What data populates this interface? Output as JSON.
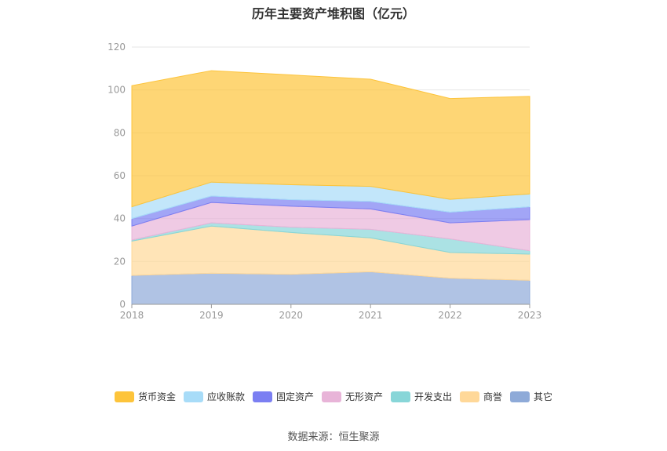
{
  "title": "历年主要资产堆积图（亿元）",
  "source": "数据来源：恒生聚源",
  "chart_data": {
    "type": "area",
    "stacked": true,
    "categories": [
      "2018",
      "2019",
      "2020",
      "2021",
      "2022",
      "2023"
    ],
    "ylim": [
      0,
      120
    ],
    "yticks": [
      "0",
      "20",
      "40",
      "60",
      "80",
      "100",
      "120"
    ],
    "grid": true,
    "legend_position": "bottom",
    "series": [
      {
        "name": "其它",
        "color": "#8eaad8",
        "values": [
          13.5,
          14.5,
          14.0,
          15.2,
          12.2,
          11.2
        ]
      },
      {
        "name": "商誉",
        "color": "#ffd899",
        "values": [
          16.0,
          22.0,
          19.5,
          15.8,
          12.0,
          12.2
        ]
      },
      {
        "name": "开发支出",
        "color": "#88d6d8",
        "values": [
          0.5,
          1.5,
          2.5,
          4.0,
          6.3,
          1.6
        ]
      },
      {
        "name": "无形资产",
        "color": "#e8b4d8",
        "values": [
          6.5,
          9.5,
          9.8,
          9.5,
          7.5,
          14.5
        ]
      },
      {
        "name": "固定资产",
        "color": "#7b7ff2",
        "values": [
          3.5,
          3.0,
          3.0,
          3.5,
          5.0,
          6.0
        ]
      },
      {
        "name": "应收账款",
        "color": "#a8dcf8",
        "values": [
          5.5,
          6.5,
          7.0,
          7.0,
          6.0,
          6.0
        ]
      },
      {
        "name": "货币资金",
        "color": "#fdc43b",
        "values": [
          56.5,
          52.0,
          51.2,
          50.0,
          47.0,
          45.5
        ]
      }
    ]
  },
  "legend": [
    {
      "label": "货币资金",
      "color": "#fdc43b"
    },
    {
      "label": "应收账款",
      "color": "#a8dcf8"
    },
    {
      "label": "固定资产",
      "color": "#7b7ff2"
    },
    {
      "label": "无形资产",
      "color": "#e8b4d8"
    },
    {
      "label": "开发支出",
      "color": "#88d6d8"
    },
    {
      "label": "商誉",
      "color": "#ffd899"
    },
    {
      "label": "其它",
      "color": "#8eaad8"
    }
  ]
}
